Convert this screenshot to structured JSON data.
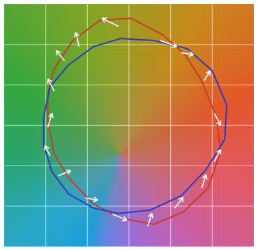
{
  "chart_data": {
    "type": "line",
    "title": "",
    "xlabel": "",
    "ylabel": "",
    "xlim": [
      0,
      6
    ],
    "ylim": [
      0,
      6
    ],
    "grid": true,
    "colors": {
      "red_series": "#c83a2c",
      "blue_series": "#2c3bc0",
      "arrows": "#ffffff",
      "grid": "#ffffff"
    },
    "series": [
      {
        "role": "red",
        "points": [
          [
            3.05,
            5.65
          ],
          [
            2.3,
            5.6
          ],
          [
            1.65,
            5.1
          ],
          [
            1.2,
            4.4
          ],
          [
            1.05,
            3.8
          ],
          [
            1.05,
            3.1
          ],
          [
            1.2,
            2.3
          ],
          [
            1.55,
            1.7
          ],
          [
            2.15,
            1.05
          ],
          [
            2.8,
            0.7
          ],
          [
            3.6,
            0.55
          ],
          [
            4.3,
            0.85
          ],
          [
            4.9,
            1.45
          ],
          [
            5.2,
            2.35
          ],
          [
            5.1,
            3.2
          ],
          [
            4.75,
            4.1
          ],
          [
            4.35,
            4.75
          ],
          [
            3.8,
            5.25
          ],
          [
            3.05,
            5.65
          ]
        ]
      },
      {
        "role": "blue",
        "points": [
          [
            2.8,
            5.15
          ],
          [
            2.15,
            4.95
          ],
          [
            1.55,
            4.5
          ],
          [
            1.1,
            3.95
          ],
          [
            0.95,
            3.2
          ],
          [
            0.95,
            2.5
          ],
          [
            1.15,
            1.85
          ],
          [
            1.55,
            1.3
          ],
          [
            2.15,
            0.95
          ],
          [
            2.75,
            0.82
          ],
          [
            3.5,
            0.9
          ],
          [
            4.25,
            1.25
          ],
          [
            4.85,
            1.9
          ],
          [
            5.3,
            2.65
          ],
          [
            5.35,
            3.5
          ],
          [
            5.0,
            4.35
          ],
          [
            4.4,
            4.9
          ],
          [
            3.6,
            5.1
          ],
          [
            2.8,
            5.15
          ]
        ]
      }
    ],
    "arrows": [
      [
        [
          2.75,
          5.45
        ],
        [
          2.35,
          5.65
        ]
      ],
      [
        [
          1.8,
          4.95
        ],
        [
          1.72,
          5.3
        ]
      ],
      [
        [
          1.45,
          4.6
        ],
        [
          1.25,
          4.85
        ]
      ],
      [
        [
          1.2,
          3.85
        ],
        [
          1.05,
          4.15
        ]
      ],
      [
        [
          1.05,
          2.95
        ],
        [
          1.15,
          3.3
        ]
      ],
      [
        [
          1.1,
          2.25
        ],
        [
          0.98,
          2.5
        ]
      ],
      [
        [
          1.3,
          1.75
        ],
        [
          1.6,
          1.88
        ]
      ],
      [
        [
          1.95,
          1.2
        ],
        [
          2.25,
          1.15
        ]
      ],
      [
        [
          2.6,
          0.8
        ],
        [
          2.95,
          0.65
        ]
      ],
      [
        [
          3.45,
          0.5
        ],
        [
          3.55,
          0.82
        ]
      ],
      [
        [
          4.1,
          0.95
        ],
        [
          4.3,
          1.22
        ]
      ],
      [
        [
          4.75,
          1.45
        ],
        [
          4.85,
          1.78
        ]
      ],
      [
        [
          5.05,
          2.1
        ],
        [
          5.2,
          2.4
        ]
      ],
      [
        [
          5.05,
          3.3
        ],
        [
          5.2,
          3.0
        ]
      ],
      [
        [
          4.8,
          4.1
        ],
        [
          4.95,
          4.35
        ]
      ],
      [
        [
          4.25,
          4.8
        ],
        [
          4.55,
          4.75
        ]
      ],
      [
        [
          3.75,
          5.1
        ],
        [
          4.15,
          4.95
        ]
      ]
    ]
  }
}
